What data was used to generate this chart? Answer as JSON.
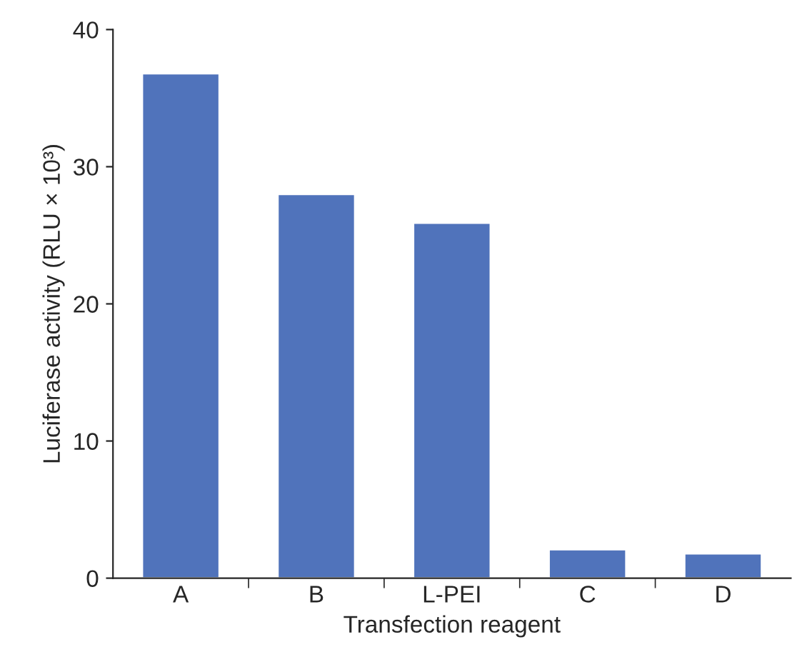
{
  "chart_data": {
    "type": "bar",
    "xlabel": "Transfection reagent",
    "ylabel": "Luciferase activity (RLU × 10³)",
    "categories": [
      "A",
      "B",
      "L-PEI",
      "C",
      "D"
    ],
    "values": [
      36.8,
      28.0,
      25.9,
      2.1,
      1.8
    ],
    "color": "#5073bb",
    "ylim": [
      0,
      40
    ],
    "yticks": [
      0,
      10,
      20,
      30,
      40
    ],
    "grid": false
  }
}
